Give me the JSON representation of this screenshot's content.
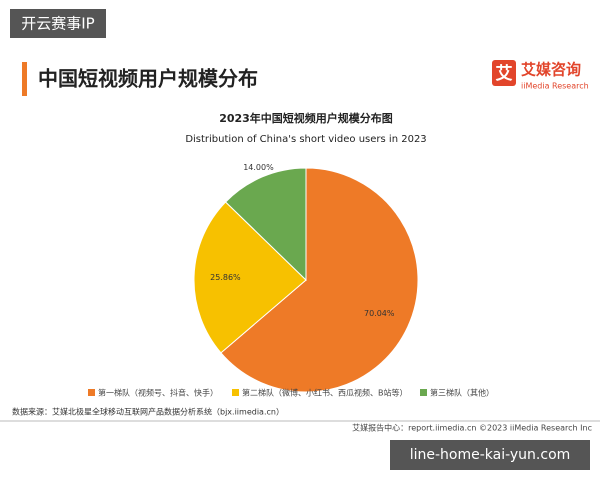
{
  "watermark": "开云赛事IP",
  "header": {
    "title": "中国短视频用户规模分布",
    "logo_icon": "艾",
    "logo_cn": "艾媒咨询",
    "logo_en": "iiMedia Research"
  },
  "chart_data": {
    "type": "pie",
    "title": "2023年中国短视频用户规模分布图",
    "subtitle": "Distribution of China's short video users in 2023",
    "categories": [
      "第一梯队（视频号、抖音、快手）",
      "第二梯队（微博、小红书、西瓜视频、B站等）",
      "第三梯队（其他）"
    ],
    "values": [
      70.04,
      25.86,
      14.0
    ],
    "value_labels": [
      "70.04%",
      "25.86%",
      "14.00%"
    ],
    "colors": [
      "#ee7a27",
      "#f7c100",
      "#6aa84f"
    ]
  },
  "source": "数据来源：艾媒北极星全球移动互联网产品数据分析系统（bjx.iimedia.cn）",
  "footer": "艾媒报告中心：report.iimedia.cn  ©2023  iiMedia Research  Inc",
  "url_watermark": "line-home-kai-yun.com"
}
